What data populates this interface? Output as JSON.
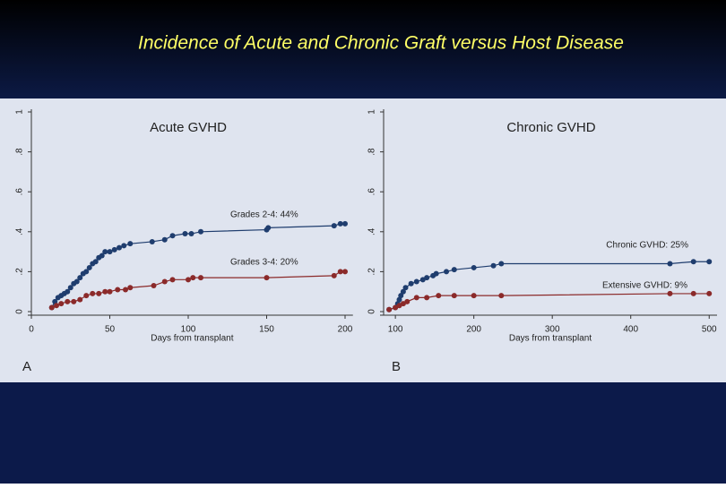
{
  "slide_title": "Incidence of Acute and Chronic Graft versus Host Disease",
  "chart_data": [
    {
      "type": "line",
      "title": "Acute GVHD",
      "x_label": "Days from transplant",
      "panel_label": "A",
      "xlim": [
        0,
        205
      ],
      "xticks": [
        0,
        50,
        100,
        150,
        200
      ],
      "ylim": [
        0,
        1
      ],
      "yticks": [
        0,
        {
          "value": 0.2,
          "label": ".2"
        },
        {
          "value": 0.4,
          "label": ".4"
        },
        {
          "value": 0.6,
          "label": ".6"
        },
        {
          "value": 0.8,
          "label": ".8"
        },
        1
      ],
      "annotations": [
        "Grades 2-4: 44%",
        "Grades 3-4: 20%"
      ],
      "series": [
        {
          "color": "#1f3d6e",
          "x": [
            13,
            15,
            17,
            19,
            21,
            23,
            25,
            27,
            29,
            31,
            33,
            35,
            37,
            39,
            41,
            43,
            45,
            47,
            50,
            53,
            56,
            59,
            63,
            77,
            85,
            90,
            98,
            102,
            108,
            150,
            151,
            193,
            197,
            200
          ],
          "values": [
            0.02,
            0.05,
            0.07,
            0.08,
            0.09,
            0.1,
            0.12,
            0.14,
            0.15,
            0.17,
            0.19,
            0.2,
            0.22,
            0.24,
            0.25,
            0.27,
            0.28,
            0.3,
            0.3,
            0.31,
            0.32,
            0.33,
            0.34,
            0.35,
            0.36,
            0.38,
            0.39,
            0.39,
            0.4,
            0.41,
            0.42,
            0.43,
            0.44,
            0.44
          ]
        },
        {
          "color": "#8b2a2a",
          "x": [
            13,
            16,
            19,
            23,
            27,
            31,
            35,
            39,
            43,
            47,
            50,
            55,
            60,
            63,
            78,
            85,
            90,
            100,
            103,
            108,
            150,
            193,
            197,
            200
          ],
          "values": [
            0.02,
            0.03,
            0.04,
            0.05,
            0.05,
            0.06,
            0.08,
            0.09,
            0.09,
            0.1,
            0.1,
            0.11,
            0.11,
            0.12,
            0.13,
            0.15,
            0.16,
            0.16,
            0.17,
            0.17,
            0.17,
            0.18,
            0.2,
            0.2
          ]
        }
      ]
    },
    {
      "type": "line",
      "title": "Chronic GVHD",
      "x_label": "Days from transplant",
      "panel_label": "B",
      "xlim": [
        85,
        510
      ],
      "xticks": [
        100,
        200,
        300,
        400,
        500
      ],
      "ylim": [
        0,
        1
      ],
      "yticks": [
        0,
        {
          "value": 0.2,
          "label": ".2"
        },
        {
          "value": 0.4,
          "label": ".4"
        },
        {
          "value": 0.6,
          "label": ".6"
        },
        {
          "value": 0.8,
          "label": ".8"
        },
        1
      ],
      "annotations": [
        "Chronic GVHD: 25%",
        "Extensive GVHD: 9%"
      ],
      "series": [
        {
          "color": "#1f3d6e",
          "x": [
            92,
            100,
            103,
            105,
            107,
            110,
            113,
            120,
            127,
            135,
            140,
            148,
            152,
            165,
            175,
            200,
            225,
            235,
            450,
            480,
            500
          ],
          "values": [
            0.01,
            0.02,
            0.04,
            0.06,
            0.08,
            0.1,
            0.12,
            0.14,
            0.15,
            0.16,
            0.17,
            0.18,
            0.19,
            0.2,
            0.21,
            0.22,
            0.23,
            0.24,
            0.24,
            0.25,
            0.25
          ]
        },
        {
          "color": "#8b2a2a",
          "x": [
            92,
            100,
            105,
            110,
            115,
            127,
            140,
            155,
            175,
            200,
            235,
            450,
            480,
            500
          ],
          "values": [
            0.01,
            0.02,
            0.03,
            0.04,
            0.05,
            0.07,
            0.07,
            0.08,
            0.08,
            0.08,
            0.08,
            0.09,
            0.09,
            0.09
          ]
        }
      ]
    }
  ]
}
